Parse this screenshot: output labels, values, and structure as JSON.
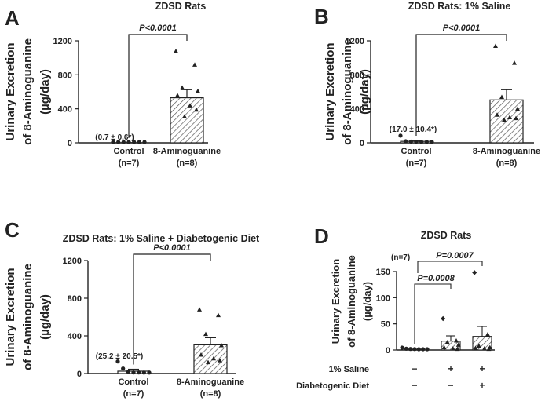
{
  "chart_data": [
    {
      "panel": "A",
      "type": "bar",
      "title": "ZDSD Rats",
      "ylabel": [
        "Urinary Excretion",
        "of 8-Aminoguanine",
        "(µg/day)"
      ],
      "ylim": [
        0,
        1200
      ],
      "yticks": [
        "0",
        "400",
        "800",
        "1200"
      ],
      "categories": [
        "Control",
        "8-Aminoguanine"
      ],
      "category_n": [
        "(n=7)",
        "(n=8)"
      ],
      "values": [
        0.7,
        530
      ],
      "errors": [
        0.6,
        95
      ],
      "points": [
        [
          0,
          0,
          0,
          0,
          0,
          0,
          0
        ],
        [
          1080,
          920,
          650,
          610,
          560,
          440,
          390,
          310
        ]
      ],
      "annotation": "(0.7 ± 0.6*)",
      "significance": "P<0.0001"
    },
    {
      "panel": "B",
      "type": "bar",
      "title": "ZDSD Rats: 1% Saline",
      "ylabel": [
        "Urinary Excretion",
        "of 8-Aminoguanine",
        "(µg/day)"
      ],
      "ylim": [
        0,
        1200
      ],
      "yticks": [
        "0",
        "400",
        "800",
        "1200"
      ],
      "categories": [
        "Control",
        "8-Aminoguanine"
      ],
      "category_n": [
        "(n=7)",
        "(n=8)"
      ],
      "values": [
        17,
        505
      ],
      "errors": [
        10.4,
        120
      ],
      "points": [
        [
          75,
          10,
          5,
          3,
          2,
          2,
          1
        ],
        [
          1140,
          940,
          540,
          400,
          330,
          300,
          290,
          270
        ]
      ],
      "annotation": "(17.0 ± 10.4*)",
      "significance": "P<0.0001"
    },
    {
      "panel": "C",
      "type": "bar",
      "title": "ZDSD Rats: 1% Saline + Diabetogenic Diet",
      "ylabel": [
        "Urinary Excretion",
        "of 8-Aminoguanine",
        "(µg/day)"
      ],
      "ylim": [
        0,
        1200
      ],
      "yticks": [
        "0",
        "400",
        "800",
        "1200"
      ],
      "categories": [
        "Control",
        "8-Aminoguanine"
      ],
      "category_n": [
        "(n=7)",
        "(n=8)"
      ],
      "values": [
        25.2,
        305
      ],
      "errors": [
        20.5,
        75
      ],
      "points": [
        [
          120,
          45,
          10,
          3,
          3,
          2,
          2
        ],
        [
          680,
          620,
          420,
          300,
          200,
          160,
          140,
          120
        ]
      ],
      "annotation": "(25.2 ± 20.5*)",
      "significance": "P<0.0001"
    },
    {
      "panel": "D",
      "type": "bar",
      "title": "ZDSD Rats",
      "ylabel": [
        "Urinary Excretion",
        "of 8-Aminoguanine",
        "(µg/day)"
      ],
      "ylim": [
        0,
        150
      ],
      "yticks": [
        "0",
        "50",
        "100",
        "150"
      ],
      "values": [
        0.5,
        17,
        26
      ],
      "errors": [
        0.3,
        10,
        19
      ],
      "points": [
        [
          3,
          1,
          0.5,
          0.3,
          0,
          0,
          0
        ],
        [
          60,
          18,
          15,
          10,
          5,
          3,
          2
        ],
        [
          148,
          30,
          8,
          5,
          4,
          3,
          2
        ]
      ],
      "n_note": "(n=7)",
      "significance": [
        "P=0.0008",
        "P=0.0007"
      ],
      "row_labels": [
        "1% Saline",
        "Diabetogenic Diet"
      ],
      "row_values": [
        [
          "−",
          "+",
          "+"
        ],
        [
          "−",
          "−",
          "+"
        ]
      ]
    }
  ]
}
